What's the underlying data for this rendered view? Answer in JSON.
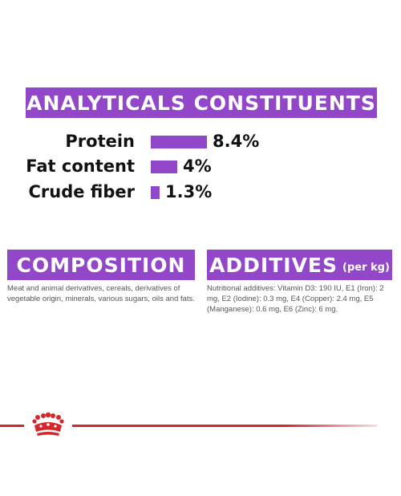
{
  "analyticals": {
    "title": "ANALYTICALS CONSTITUENTS",
    "items": [
      {
        "label": "Protein",
        "value": "8.4%",
        "amount": 8.4
      },
      {
        "label": "Fat content",
        "value": "4%",
        "amount": 4
      },
      {
        "label": "Crude fiber",
        "value": "1.3%",
        "amount": 1.3
      }
    ]
  },
  "composition": {
    "title": "COMPOSITION",
    "text": "Meat and animal derivatives, cereals, derivatives of vegetable origin, minerals, various sugars, oils and fats."
  },
  "additives": {
    "title": "ADDITIVES",
    "title_sub": "(per kg)",
    "text": "Nutritional additives: Vitamin D3: 190 IU, E1 (Iron): 2 mg, E2 (Iodine): 0.3 mg, E4 (Copper): 2.4 mg, E5 (Manganese): 0.6 mg, E6 (Zinc): 6 mg."
  },
  "footer": {
    "logo_icon": "crown-icon",
    "accent_color": "#d3272c"
  },
  "colors": {
    "banner": "#9247c9",
    "bar": "#9247c9"
  }
}
